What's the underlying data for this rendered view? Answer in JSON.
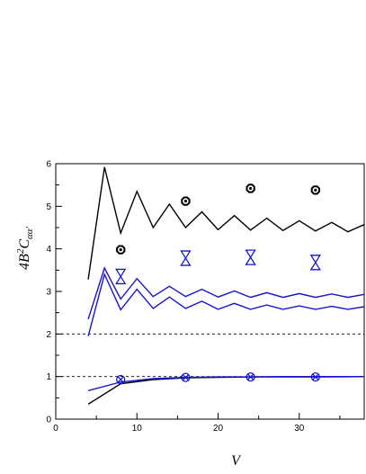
{
  "chart_data": {
    "type": "line",
    "xlabel": "V",
    "ylabel_parts": {
      "base": "4B",
      "sup": "2",
      "mid": "C",
      "sub": "αα′"
    },
    "xlim": [
      0,
      38
    ],
    "ylim": [
      0,
      6
    ],
    "x_ticks": [
      "0",
      "10",
      "20",
      "30"
    ],
    "y_ticks": [
      "0",
      "1",
      "2",
      "3",
      "4",
      "5",
      "6"
    ],
    "reference_lines": [
      1,
      2
    ],
    "colors": {
      "black": "#000000",
      "blue": "#1515d0"
    },
    "series": [
      {
        "color": "#000000",
        "marker": "none",
        "x": [
          4,
          6,
          8,
          10,
          12,
          14,
          16,
          18,
          20,
          22,
          24,
          26,
          28,
          30,
          32,
          34,
          36,
          38
        ],
        "y": [
          3.28,
          5.92,
          4.37,
          5.35,
          4.5,
          5.05,
          4.5,
          4.87,
          4.45,
          4.78,
          4.44,
          4.72,
          4.43,
          4.66,
          4.42,
          4.62,
          4.4,
          4.57
        ]
      },
      {
        "color": "#1515d0",
        "marker": "none",
        "x": [
          4,
          6,
          8,
          10,
          12,
          14,
          16,
          18,
          20,
          22,
          24,
          26,
          28,
          30,
          32,
          34,
          36,
          38
        ],
        "y": [
          2.35,
          3.55,
          2.82,
          3.3,
          2.88,
          3.12,
          2.88,
          3.05,
          2.87,
          3.01,
          2.86,
          2.97,
          2.86,
          2.95,
          2.86,
          2.94,
          2.86,
          2.93
        ]
      },
      {
        "color": "#1515d0",
        "marker": "none",
        "x": [
          4,
          6,
          8,
          10,
          12,
          14,
          16,
          18,
          20,
          22,
          24,
          26,
          28,
          30,
          32,
          34,
          36,
          38
        ],
        "y": [
          1.95,
          3.4,
          2.57,
          3.05,
          2.6,
          2.87,
          2.6,
          2.77,
          2.58,
          2.72,
          2.58,
          2.68,
          2.58,
          2.66,
          2.58,
          2.65,
          2.58,
          2.64
        ]
      },
      {
        "color": "#000000",
        "marker": "none",
        "x": [
          4,
          8,
          12,
          16,
          20,
          24,
          28,
          32,
          38
        ],
        "y": [
          0.35,
          0.83,
          0.93,
          0.97,
          0.98,
          0.99,
          0.99,
          0.99,
          1.0
        ]
      },
      {
        "color": "#1515d0",
        "marker": "none",
        "x": [
          4,
          8,
          12,
          16,
          20,
          24,
          28,
          32,
          38
        ],
        "y": [
          0.67,
          0.87,
          0.95,
          0.98,
          0.99,
          0.99,
          1.0,
          1.0,
          1.0
        ]
      },
      {
        "color": "#000000",
        "marker": "octagon",
        "x": [
          8,
          16,
          24,
          32
        ],
        "y": [
          3.98,
          5.12,
          5.42,
          5.38
        ]
      },
      {
        "color": "#1515d0",
        "marker": "hourglass",
        "x": [
          8,
          16,
          24,
          32
        ],
        "y": [
          3.35,
          3.78,
          3.8,
          3.68
        ]
      },
      {
        "color": "#1515d0",
        "marker": "circle-x",
        "x": [
          8,
          16,
          24,
          32
        ],
        "y": [
          0.93,
          0.98,
          0.99,
          0.99
        ]
      }
    ]
  }
}
